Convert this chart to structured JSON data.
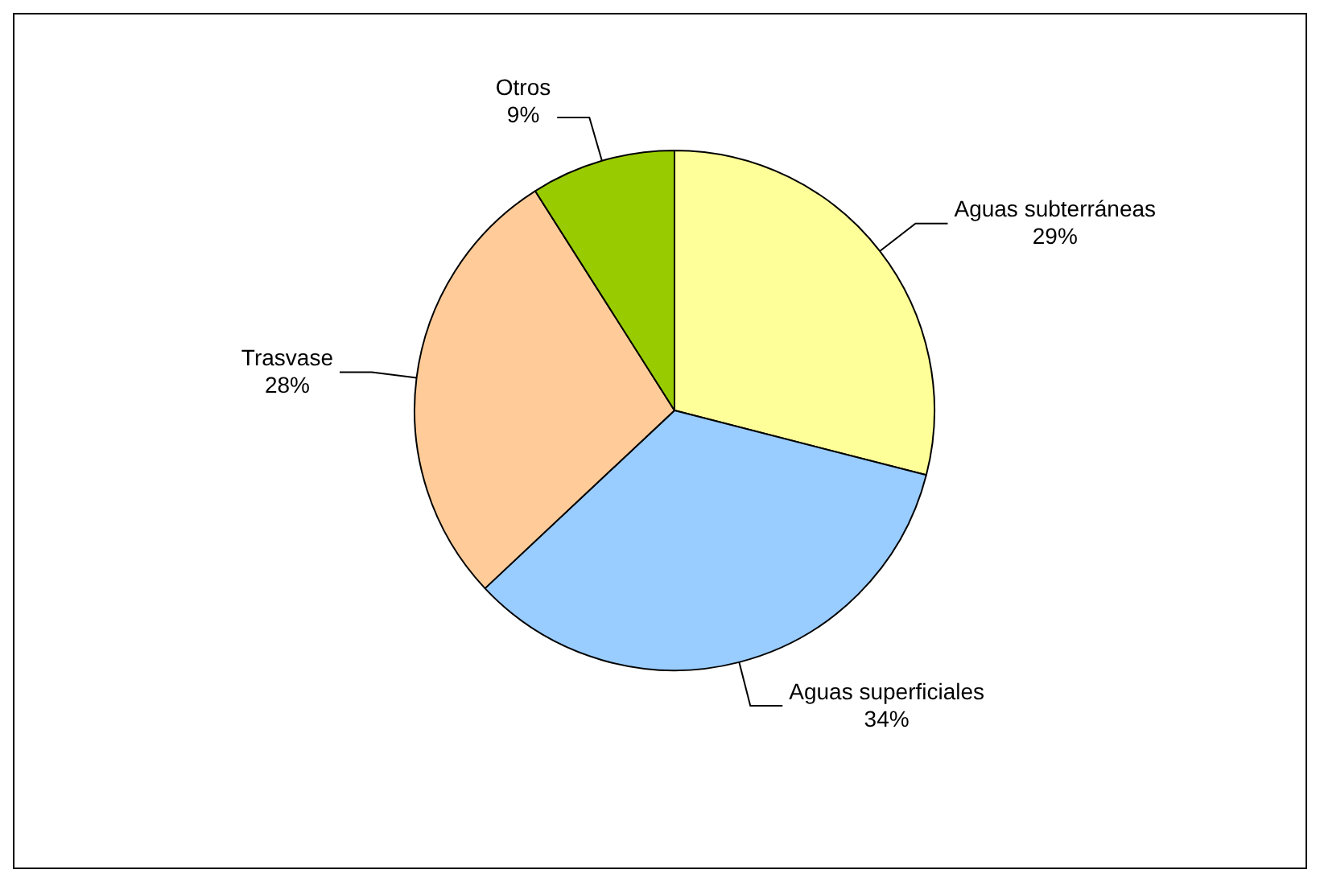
{
  "chart_data": {
    "type": "pie",
    "categories": [
      "Aguas subterráneas",
      "Aguas superficiales",
      "Trasvase",
      "Otros"
    ],
    "values": [
      29,
      34,
      28,
      9
    ],
    "colors": [
      "#ffff99",
      "#99ccff",
      "#ffcc99",
      "#99cc00"
    ],
    "value_labels": [
      "29%",
      "34%",
      "28%",
      "9%"
    ],
    "legend": false
  }
}
